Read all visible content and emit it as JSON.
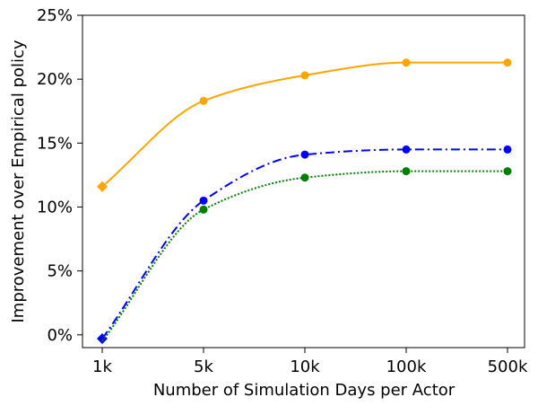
{
  "chart_data": {
    "type": "line",
    "title": "",
    "xlabel": "Number of Simulation Days per Actor",
    "ylabel": "Improvement over Empirical policy",
    "categories": [
      "1k",
      "5k",
      "10k",
      "100k",
      "500k"
    ],
    "y_ticks": [
      0,
      5,
      10,
      15,
      20,
      25
    ],
    "y_tick_labels": [
      "0%",
      "5%",
      "10%",
      "15%",
      "20%",
      "25%"
    ],
    "ylim": [
      -1,
      25
    ],
    "grid": false,
    "legend": "none",
    "series": [
      {
        "name": "orange",
        "color": "#ffa500",
        "line_style": "solid",
        "first_marker": "diamond",
        "values": [
          11.6,
          18.3,
          20.3,
          21.3,
          21.3
        ]
      },
      {
        "name": "blue",
        "color": "#0000ff",
        "line_style": "dashdot",
        "first_marker": "diamond",
        "values": [
          -0.3,
          10.5,
          14.1,
          14.5,
          14.5
        ]
      },
      {
        "name": "green",
        "color": "#008000",
        "line_style": "dotted",
        "first_marker": "none",
        "values": [
          -0.5,
          9.8,
          12.3,
          12.8,
          12.8
        ]
      }
    ]
  }
}
